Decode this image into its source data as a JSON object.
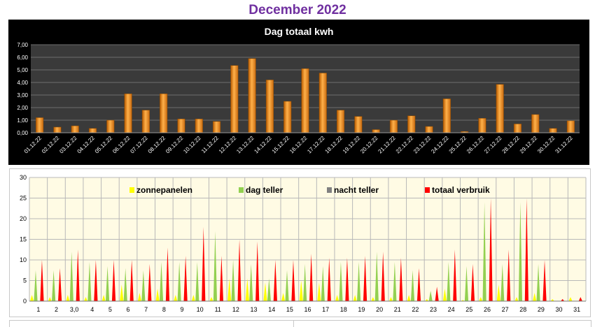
{
  "page": {
    "title": "December 2022"
  },
  "chart_data": [
    {
      "type": "bar",
      "title": "Dag totaal kwh",
      "xlabel": "",
      "ylabel": "",
      "ylim": [
        0,
        7
      ],
      "yticks": [
        "0,00",
        "1,00",
        "2,00",
        "3,00",
        "4,00",
        "5,00",
        "6,00",
        "7,00"
      ],
      "grid": true,
      "legend": "none",
      "colors": {
        "background": "#000000",
        "plot": "#3a3a3a",
        "grid": "#6e6e6e",
        "bar": "#f08c1e",
        "text": "#ffffff"
      },
      "categories": [
        "01.12.22",
        "02.12.22",
        "03.12.22",
        "04.12.22",
        "05.12.22",
        "06.12.22",
        "07.12.22",
        "08.12.22",
        "09.12.22",
        "10.12.22",
        "11.12.22",
        "12.12.22",
        "13.12.22",
        "14.12.22",
        "15.12.22",
        "16.12.22",
        "17.12.22",
        "18.12.22",
        "19.12.22",
        "20.12.22",
        "21.12.22",
        "22.12.22",
        "23.12.22",
        "24.12.22",
        "25.12.22",
        "26.12.22",
        "27.12.22",
        "28.12.22",
        "29.12.22",
        "30.12.22",
        "31.12.22"
      ],
      "values": [
        1.2,
        0.45,
        0.55,
        0.35,
        1.0,
        3.1,
        1.8,
        3.1,
        1.1,
        1.1,
        0.9,
        5.35,
        5.9,
        4.2,
        2.5,
        5.1,
        4.75,
        1.8,
        1.3,
        0.25,
        1.0,
        1.35,
        0.5,
        2.7,
        0.1,
        1.15,
        3.85,
        0.7,
        1.45,
        0.35,
        0.95
      ]
    },
    {
      "type": "area",
      "title": "",
      "xlabel": "",
      "ylabel": "",
      "ylim": [
        0,
        30
      ],
      "yticks": [
        "0",
        "5",
        "10",
        "15",
        "20",
        "25",
        "30"
      ],
      "grid": true,
      "legend": "top",
      "colors": {
        "background": "#fffbe4",
        "grid": "#b8b8b8",
        "axis_text": "#000000"
      },
      "categories": [
        "1",
        "2",
        "3,0",
        "4",
        "5",
        "6",
        "7",
        "8",
        "9",
        "10",
        "11",
        "12",
        "13",
        "14",
        "15",
        "16",
        "17",
        "18",
        "19",
        "20",
        "21",
        "22",
        "23",
        "24",
        "25",
        "26",
        "27",
        "28",
        "29",
        "30",
        "31"
      ],
      "series": [
        {
          "name": "zonnepanelen",
          "color": "#ffff00",
          "values": [
            1.5,
            1.0,
            1.5,
            1.0,
            1.5,
            4.0,
            2.0,
            3.0,
            1.5,
            1.5,
            1.0,
            5.5,
            5.5,
            4.5,
            2.0,
            5.0,
            4.5,
            1.5,
            1.5,
            1.0,
            1.0,
            1.5,
            0.5,
            3.0,
            0.3,
            1.0,
            4.0,
            1.0,
            2.0,
            0.5,
            1.0
          ]
        },
        {
          "name": "dag teller",
          "color": "#92d050",
          "values": [
            7.5,
            7.5,
            12.0,
            9.5,
            8.5,
            8.0,
            7.5,
            9.5,
            9.5,
            9.5,
            17.0,
            10.0,
            9.0,
            5.5,
            7.5,
            9.0,
            8.5,
            9.5,
            9.5,
            12.0,
            9.5,
            7.5,
            2.5,
            9.5,
            8.5,
            24.0,
            9.0,
            24.0,
            9.0,
            0,
            0
          ]
        },
        {
          "name": "nacht teller",
          "color": "#808080",
          "values": [
            0,
            0,
            0,
            0,
            0,
            0,
            0,
            0,
            0,
            0,
            0,
            0,
            0,
            0,
            0,
            0,
            0,
            0,
            0,
            0,
            0,
            0,
            0,
            0,
            0,
            0,
            0,
            0,
            0,
            0,
            0
          ]
        },
        {
          "name": "totaal verbruik",
          "color": "#ff0000",
          "values": [
            10.0,
            8.0,
            12.5,
            10.0,
            10.0,
            10.0,
            9.0,
            13.0,
            11.0,
            18.0,
            11.0,
            15.0,
            14.5,
            10.0,
            10.0,
            11.5,
            10.5,
            10.5,
            11.0,
            12.0,
            10.5,
            8.0,
            3.5,
            12.5,
            9.0,
            25.0,
            12.5,
            25.0,
            10.0,
            0.5,
            1.0
          ]
        }
      ]
    }
  ]
}
